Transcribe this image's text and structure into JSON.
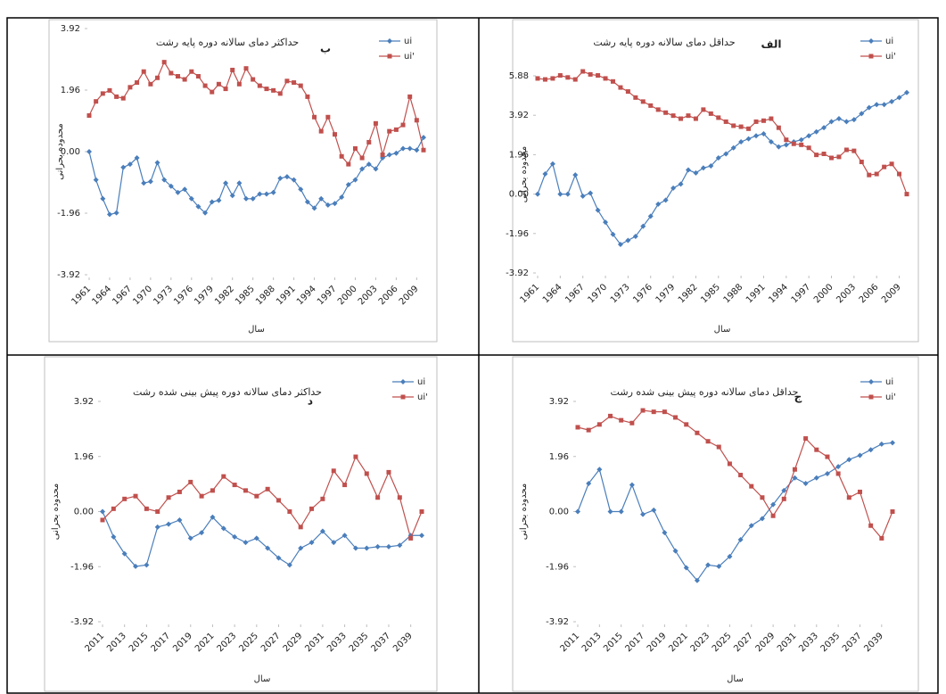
{
  "chart_data": [
    {
      "type": "line",
      "title": "حداکثر دمای سالانه دوره پایه رشت",
      "annotation": "ب",
      "x_label": "سال",
      "y_label": "محدوده بحرانی",
      "x": [
        1961,
        1962,
        1963,
        1964,
        1965,
        1966,
        1967,
        1968,
        1969,
        1970,
        1971,
        1972,
        1973,
        1974,
        1975,
        1976,
        1977,
        1978,
        1979,
        1980,
        1981,
        1982,
        1983,
        1984,
        1985,
        1986,
        1987,
        1988,
        1989,
        1990,
        1991,
        1992,
        1993,
        1994,
        1995,
        1996,
        1997,
        1998,
        1999,
        2000,
        2001,
        2002,
        2003,
        2004,
        2005,
        2006,
        2007,
        2008,
        2009,
        2010
      ],
      "xlim": [
        1961,
        2010
      ],
      "xticks": [
        1961,
        1964,
        1967,
        1970,
        1973,
        1976,
        1979,
        1982,
        1985,
        1988,
        1991,
        1994,
        1997,
        2000,
        2003,
        2006,
        2009
      ],
      "ylim": [
        -3.92,
        3.92
      ],
      "yticks": [
        -3.92,
        -1.96,
        {
          "value": 0,
          "label": "0.00"
        },
        1.96,
        3.92
      ],
      "legend": "upper right",
      "series": [
        {
          "name": "ui",
          "color": "#4a7ebb",
          "values": [
            0.0,
            -0.9,
            -1.5,
            -2.0,
            -1.95,
            -0.5,
            -0.4,
            -0.2,
            -1.0,
            -0.95,
            -0.35,
            -0.9,
            -1.1,
            -1.3,
            -1.2,
            -1.5,
            -1.75,
            -1.95,
            -1.6,
            -1.55,
            -1.0,
            -1.4,
            -1.0,
            -1.5,
            -1.5,
            -1.35,
            -1.35,
            -1.3,
            -0.85,
            -0.8,
            -0.9,
            -1.2,
            -1.6,
            -1.8,
            -1.5,
            -1.7,
            -1.65,
            -1.45,
            -1.05,
            -0.9,
            -0.55,
            -0.4,
            -0.55,
            -0.2,
            -0.1,
            -0.05,
            0.1,
            0.1,
            0.05,
            0.45
          ]
        },
        {
          "name": "ui'",
          "color": "#c0504d",
          "values": [
            1.15,
            1.6,
            1.85,
            1.95,
            1.75,
            1.7,
            2.05,
            2.2,
            2.55,
            2.15,
            2.35,
            2.85,
            2.5,
            2.4,
            2.3,
            2.55,
            2.4,
            2.1,
            1.9,
            2.15,
            2.0,
            2.6,
            2.15,
            2.65,
            2.3,
            2.1,
            2.0,
            1.95,
            1.85,
            2.25,
            2.2,
            2.1,
            1.75,
            1.1,
            0.65,
            1.1,
            0.55,
            -0.15,
            -0.4,
            0.1,
            -0.2,
            0.3,
            0.9,
            -0.1,
            0.65,
            0.7,
            0.85,
            1.75,
            1.0,
            0.05
          ]
        }
      ]
    },
    {
      "type": "line",
      "title": "حداقل دمای سالانه دوره پایه رشت",
      "annotation": "الف",
      "x_label": "سال",
      "y_label": "محدوده بحرانی",
      "x": [
        1961,
        1962,
        1963,
        1964,
        1965,
        1966,
        1967,
        1968,
        1969,
        1970,
        1971,
        1972,
        1973,
        1974,
        1975,
        1976,
        1977,
        1978,
        1979,
        1980,
        1981,
        1982,
        1983,
        1984,
        1985,
        1986,
        1987,
        1988,
        1989,
        1990,
        1991,
        1992,
        1993,
        1994,
        1995,
        1996,
        1997,
        1998,
        1999,
        2000,
        2001,
        2002,
        2003,
        2004,
        2005,
        2006,
        2007,
        2008,
        2009,
        2010
      ],
      "xlim": [
        1961,
        2010
      ],
      "xticks": [
        1961,
        1964,
        1967,
        1970,
        1973,
        1976,
        1979,
        1982,
        1985,
        1988,
        1991,
        1994,
        1997,
        2000,
        2003,
        2006,
        2009
      ],
      "ylim": [
        -3.92,
        5.88
      ],
      "yticks": [
        -3.92,
        -1.96,
        {
          "value": 0,
          "label": "0.00"
        },
        1.96,
        3.92,
        5.88
      ],
      "legend": "upper right",
      "series": [
        {
          "name": "ui",
          "color": "#4a7ebb",
          "values": [
            0.0,
            1.0,
            1.5,
            0.0,
            0.0,
            0.95,
            -0.1,
            0.05,
            -0.8,
            -1.4,
            -2.0,
            -2.5,
            -2.3,
            -2.1,
            -1.6,
            -1.1,
            -0.5,
            -0.3,
            0.3,
            0.5,
            1.2,
            1.05,
            1.3,
            1.4,
            1.8,
            2.0,
            2.3,
            2.6,
            2.75,
            2.9,
            3.0,
            2.6,
            2.35,
            2.45,
            2.6,
            2.7,
            2.9,
            3.1,
            3.3,
            3.6,
            3.75,
            3.6,
            3.7,
            4.0,
            4.3,
            4.45,
            4.45,
            4.6,
            4.8,
            5.05
          ]
        },
        {
          "name": "ui'",
          "color": "#c0504d",
          "values": [
            5.75,
            5.7,
            5.75,
            5.9,
            5.8,
            5.7,
            6.1,
            5.95,
            5.9,
            5.75,
            5.6,
            5.3,
            5.1,
            4.8,
            4.6,
            4.4,
            4.2,
            4.05,
            3.9,
            3.75,
            3.9,
            3.75,
            4.2,
            4.0,
            3.8,
            3.6,
            3.4,
            3.35,
            3.25,
            3.6,
            3.65,
            3.75,
            3.3,
            2.7,
            2.5,
            2.45,
            2.3,
            1.95,
            2.0,
            1.8,
            1.85,
            2.2,
            2.15,
            1.6,
            0.95,
            1.0,
            1.35,
            1.5,
            1.0,
            0.0
          ]
        }
      ]
    },
    {
      "type": "line",
      "title": "حداکثر دمای سالانه دوره پیش بینی شده رشت",
      "annotation": "د",
      "x_label": "سال",
      "y_label": "محدوده بحرانی",
      "x": [
        2011,
        2012,
        2013,
        2014,
        2015,
        2016,
        2017,
        2018,
        2019,
        2020,
        2021,
        2022,
        2023,
        2024,
        2025,
        2026,
        2027,
        2028,
        2029,
        2030,
        2031,
        2032,
        2033,
        2034,
        2035,
        2036,
        2037,
        2038,
        2039,
        2040
      ],
      "xlim": [
        2011,
        2040
      ],
      "xticks": [
        2011,
        2013,
        2015,
        2017,
        2019,
        2021,
        2023,
        2025,
        2027,
        2029,
        2031,
        2033,
        2035,
        2037,
        2039
      ],
      "ylim": [
        -3.92,
        3.92
      ],
      "yticks": [
        -3.92,
        -1.96,
        {
          "value": 0,
          "label": "0.00"
        },
        1.96,
        3.92
      ],
      "legend": "upper right",
      "series": [
        {
          "name": "ui",
          "color": "#4a7ebb",
          "values": [
            0.0,
            -0.9,
            -1.5,
            -1.95,
            -1.9,
            -0.55,
            -0.45,
            -0.3,
            -0.95,
            -0.75,
            -0.2,
            -0.6,
            -0.9,
            -1.1,
            -0.95,
            -1.3,
            -1.65,
            -1.9,
            -1.3,
            -1.1,
            -0.7,
            -1.1,
            -0.85,
            -1.3,
            -1.3,
            -1.25,
            -1.25,
            -1.2,
            -0.85,
            -0.85
          ]
        },
        {
          "name": "ui'",
          "color": "#c0504d",
          "values": [
            -0.3,
            0.1,
            0.45,
            0.55,
            0.1,
            0.0,
            0.5,
            0.7,
            1.05,
            0.55,
            0.75,
            1.25,
            0.95,
            0.75,
            0.55,
            0.8,
            0.4,
            0.0,
            -0.55,
            0.1,
            0.45,
            1.45,
            0.95,
            1.95,
            1.35,
            0.5,
            1.4,
            0.5,
            -0.95,
            0.0
          ]
        }
      ]
    },
    {
      "type": "line",
      "title": "حداقل دمای سالانه دوره پیش بینی شده رشت",
      "annotation": "ج",
      "x_label": "سال",
      "y_label": "محدوده بحرانی",
      "x": [
        2011,
        2012,
        2013,
        2014,
        2015,
        2016,
        2017,
        2018,
        2019,
        2020,
        2021,
        2022,
        2023,
        2024,
        2025,
        2026,
        2027,
        2028,
        2029,
        2030,
        2031,
        2032,
        2033,
        2034,
        2035,
        2036,
        2037,
        2038,
        2039,
        2040
      ],
      "xlim": [
        2011,
        2040
      ],
      "xticks": [
        2011,
        2013,
        2015,
        2017,
        2019,
        2021,
        2023,
        2025,
        2027,
        2029,
        2031,
        2033,
        2035,
        2037,
        2039
      ],
      "ylim": [
        -3.92,
        3.92
      ],
      "yticks": [
        -3.92,
        -1.96,
        {
          "value": 0,
          "label": "0.00"
        },
        1.96,
        3.92
      ],
      "legend": "upper right",
      "series": [
        {
          "name": "ui",
          "color": "#4a7ebb",
          "values": [
            0.0,
            1.0,
            1.5,
            0.0,
            0.0,
            0.95,
            -0.1,
            0.05,
            -0.75,
            -1.4,
            -2.0,
            -2.45,
            -1.9,
            -1.95,
            -1.6,
            -1.0,
            -0.5,
            -0.25,
            0.25,
            0.75,
            1.2,
            1.0,
            1.2,
            1.35,
            1.6,
            1.85,
            2.0,
            2.2,
            2.4,
            2.45
          ]
        },
        {
          "name": "ui'",
          "color": "#c0504d",
          "values": [
            3.0,
            2.9,
            3.1,
            3.4,
            3.25,
            3.15,
            3.6,
            3.55,
            3.55,
            3.35,
            3.1,
            2.8,
            2.5,
            2.3,
            1.7,
            1.3,
            0.9,
            0.5,
            -0.15,
            0.45,
            1.5,
            2.6,
            2.2,
            1.95,
            1.35,
            0.5,
            0.7,
            -0.5,
            -0.95,
            0.0
          ]
        }
      ]
    }
  ]
}
